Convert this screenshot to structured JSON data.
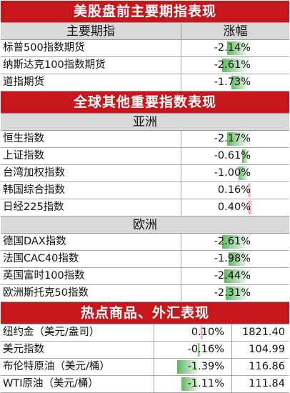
{
  "us_futures": {
    "title": "美股盘前主要期指表现",
    "col_name": "主要期指",
    "col_change": "涨幅",
    "rows": [
      {
        "name": "标普500指数期货",
        "change": "-2.14%",
        "pct": -2.14
      },
      {
        "name": "纳斯达克100指数期货",
        "change": "-2.61%",
        "pct": -2.61
      },
      {
        "name": "道指期货",
        "change": "-1.73%",
        "pct": -1.73
      }
    ]
  },
  "global": {
    "title": "全球其他重要指数表现",
    "asia_label": "亚洲",
    "asia": [
      {
        "name": "恒生指数",
        "change": "-2.17%",
        "pct": -2.17
      },
      {
        "name": "上证指数",
        "change": "-0.61%",
        "pct": -0.61
      },
      {
        "name": "台湾加权指数",
        "change": "-1.00%",
        "pct": -1.0
      },
      {
        "name": "韩国综合指数",
        "change": "0.16%",
        "pct": 0.16
      },
      {
        "name": "日经225指数",
        "change": "0.40%",
        "pct": 0.4
      }
    ],
    "europe_label": "欧洲",
    "europe": [
      {
        "name": "德国DAX指数",
        "change": "-2.61%",
        "pct": -2.61
      },
      {
        "name": "法国CAC40指数",
        "change": "-1.98%",
        "pct": -1.98
      },
      {
        "name": "英国富时100指数",
        "change": "-2.44%",
        "pct": -2.44
      },
      {
        "name": "欧洲斯托克50指数",
        "change": "-2.31%",
        "pct": -2.31
      }
    ]
  },
  "commodities": {
    "title": "热点商品、外汇表现",
    "rows": [
      {
        "name": "纽约金（美元/盎司）",
        "change": "0.10%",
        "pct": 0.1,
        "price": "1821.40"
      },
      {
        "name": "美元指数",
        "change": "-0.16%",
        "pct": -0.16,
        "price": "104.99"
      },
      {
        "name": "布伦特原油（美元/桶）",
        "change": "-1.39%",
        "pct": -1.39,
        "price": "116.86"
      },
      {
        "name": "WTI原油（美元/桶）",
        "change": "-1.11%",
        "pct": -1.11,
        "price": "111.84"
      }
    ]
  },
  "colors": {
    "header_red": "#c8171c",
    "negative_bar": "#5fb860",
    "positive_bar": "#f08a82",
    "subheader_gray": "#d9d9d9"
  }
}
